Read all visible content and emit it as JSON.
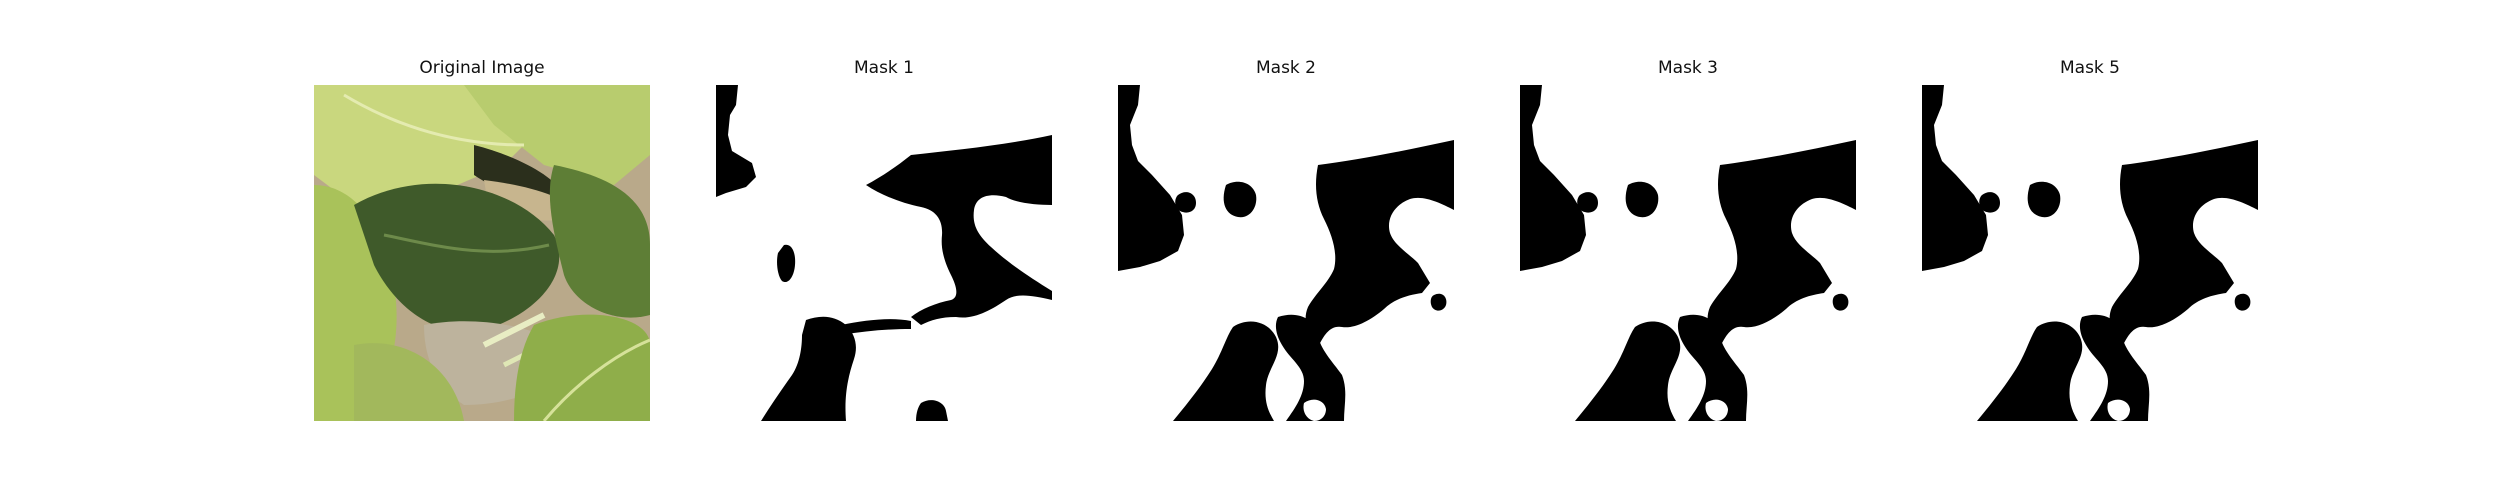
{
  "figure": {
    "panels": [
      {
        "title": "Original Image",
        "kind": "photo",
        "content": "leafy-green-plants-photo"
      },
      {
        "title": "Mask 1",
        "kind": "mask",
        "content": "binary-segmentation-mask"
      },
      {
        "title": "Mask 2",
        "kind": "mask",
        "content": "binary-segmentation-mask"
      },
      {
        "title": "Mask 3",
        "kind": "mask",
        "content": "binary-segmentation-mask"
      },
      {
        "title": "Mask 5",
        "kind": "mask",
        "content": "binary-segmentation-mask"
      }
    ]
  },
  "colors": {
    "background": "#ffffff",
    "mask_foreground": "#000000",
    "mask_background": "#ffffff",
    "leaf_light": "#c9d77e",
    "leaf_mid": "#8fae4a",
    "leaf_dark": "#3f5a2a",
    "ground": "#b9a98a"
  }
}
